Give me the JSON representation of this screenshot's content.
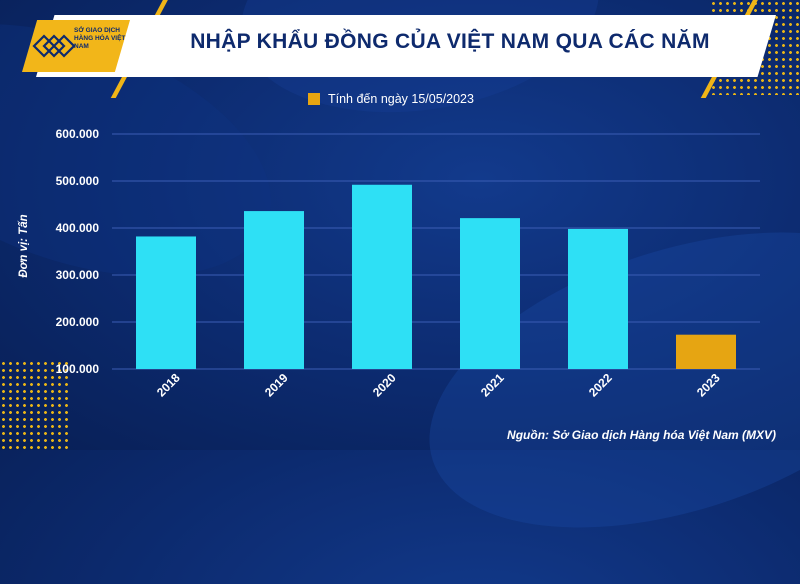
{
  "header": {
    "title": "NHẬP KHẨU ĐỒNG CỦA VIỆT NAM QUA CÁC NĂM",
    "logo_text": "SỞ GIAO DỊCH HÀNG HÓA VIỆT NAM"
  },
  "colors": {
    "bar": "#2ee0f5",
    "highlight": "#e6a512",
    "grid": "#3b5db5",
    "text": "#ffffff"
  },
  "source": "Nguồn: Sở Giao dịch Hàng hóa Việt Nam (MXV)",
  "chart_data": {
    "type": "bar",
    "title": "NHẬP KHẨU ĐỒNG CỦA VIỆT NAM QUA CÁC NĂM",
    "ylabel": "Đơn vị: Tấn",
    "xlabel": "",
    "categories": [
      "2018",
      "2019",
      "2020",
      "2021",
      "2022",
      "2023"
    ],
    "values": [
      382000,
      436000,
      492000,
      421000,
      398000,
      173000
    ],
    "highlight_index": 5,
    "legend": [
      {
        "label": "Tính đến ngày 15/05/2023",
        "color": "#e6a512"
      }
    ],
    "ylim": [
      100000,
      600000
    ],
    "yticks": [
      100000,
      200000,
      300000,
      400000,
      500000,
      600000
    ],
    "ytick_labels": [
      "100.000",
      "200.000",
      "300.000",
      "400.000",
      "500.000",
      "600.000"
    ],
    "grid": true,
    "legend_position": "top-center"
  }
}
